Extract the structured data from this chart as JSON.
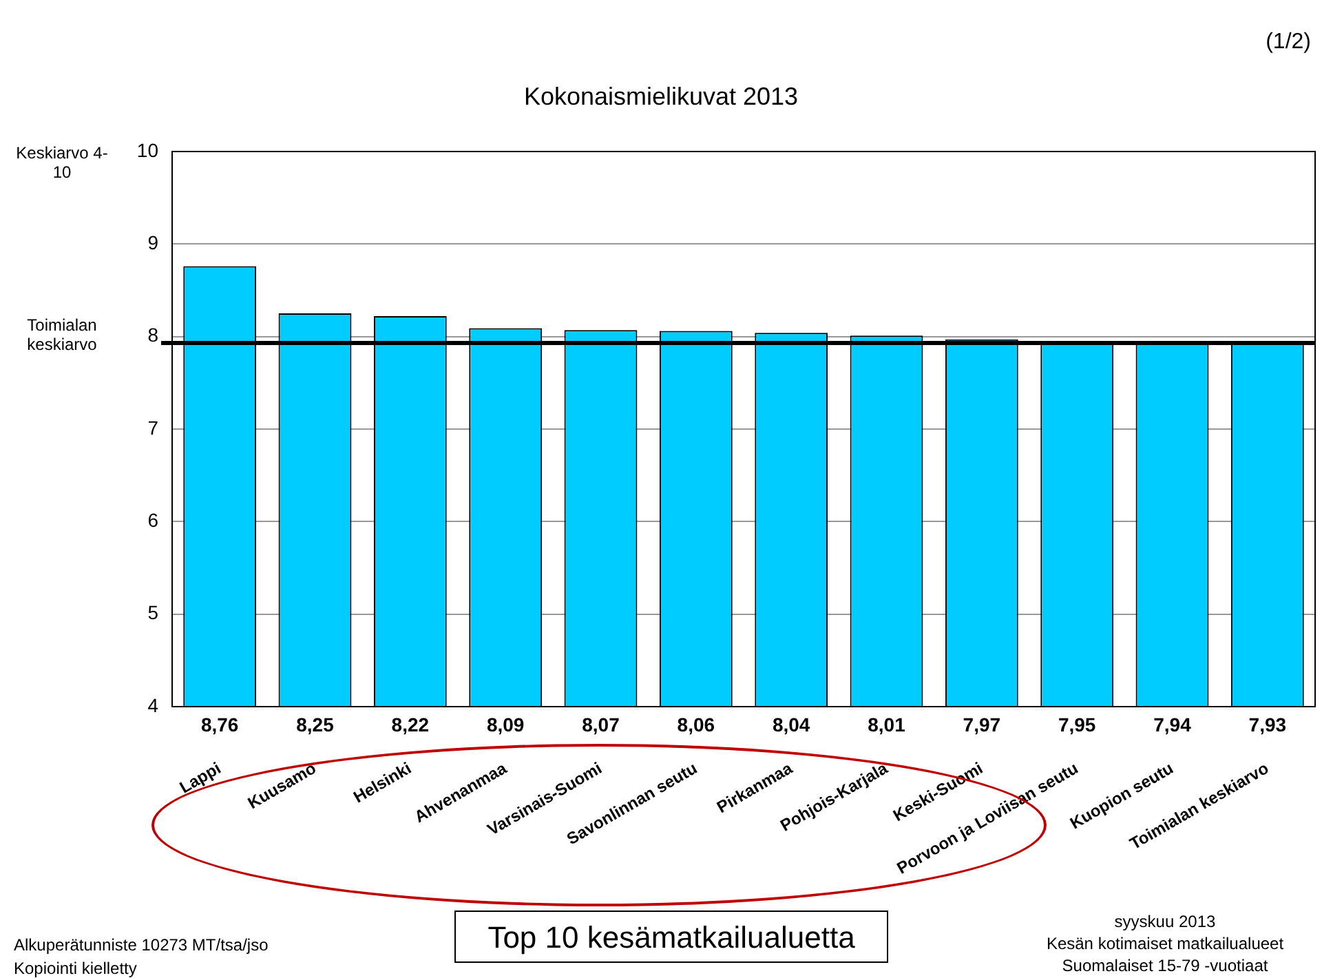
{
  "chart_data": {
    "type": "bar",
    "title": "Kokonaismielikuvat 2013",
    "ylabel": "Keskiarvo 4-10",
    "categories": [
      "Lappi",
      "Kuusamo",
      "Helsinki",
      "Ahvenanmaa",
      "Varsinais-Suomi",
      "Savonlinnan seutu",
      "Pirkanmaa",
      "Pohjois-Karjala",
      "Keski-Suomi",
      "Porvoon ja Loviisan seutu",
      "Kuopion seutu",
      "Toimialan keskiarvo"
    ],
    "values": [
      8.76,
      8.25,
      8.22,
      8.09,
      8.07,
      8.06,
      8.04,
      8.01,
      7.97,
      7.95,
      7.94,
      7.93
    ],
    "value_labels": [
      "8,76",
      "8,25",
      "8,22",
      "8,09",
      "8,07",
      "8,06",
      "8,04",
      "8,01",
      "7,97",
      "7,95",
      "7,94",
      "7,93"
    ],
    "color": "#00ccff",
    "ylim": [
      4,
      10
    ],
    "yticks": [
      4,
      5,
      6,
      7,
      8,
      9,
      10
    ],
    "grid": "y",
    "legend": false,
    "ref_lines": [
      {
        "axis": "y",
        "value": 7.93,
        "label": "Toimialan keskiarvo",
        "color": "#000000"
      }
    ],
    "annotations": [
      "(1/2)",
      "Top 10 kesämatkailualuetta",
      "Alkuperätunniste 10273 MT/tsa/jso",
      "Kopiointi kielletty",
      "syyskuu 2013",
      "Kesän kotimaiset matkailualueet",
      "Suomalaiset 15-79 -vuotiaat"
    ]
  }
}
